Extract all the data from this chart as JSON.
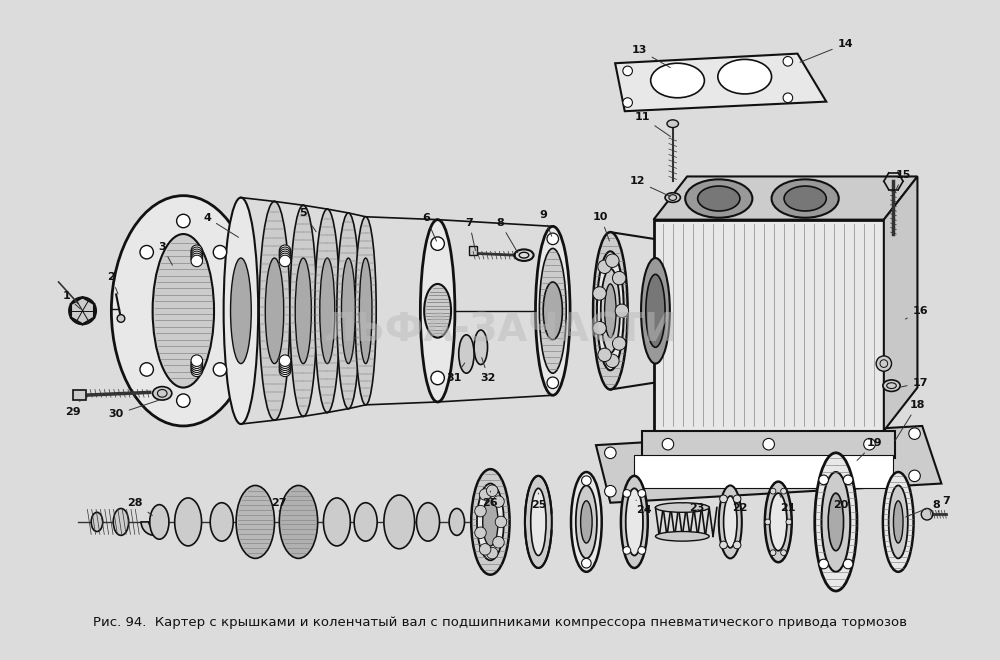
{
  "caption": "Рис. 94.  Картер с крышками и коленчатый вал с подшипниками компрессора пневматического привода тормозов",
  "background_color": "#dcdcdc",
  "fig_width": 10.0,
  "fig_height": 6.6,
  "dpi": 100,
  "watermark": "ЛЬФА-ЗАЧАСТИ",
  "watermark_color": "#bbbbbb",
  "watermark_fontsize": 28,
  "watermark_alpha": 0.5,
  "caption_fontsize": 9.5
}
